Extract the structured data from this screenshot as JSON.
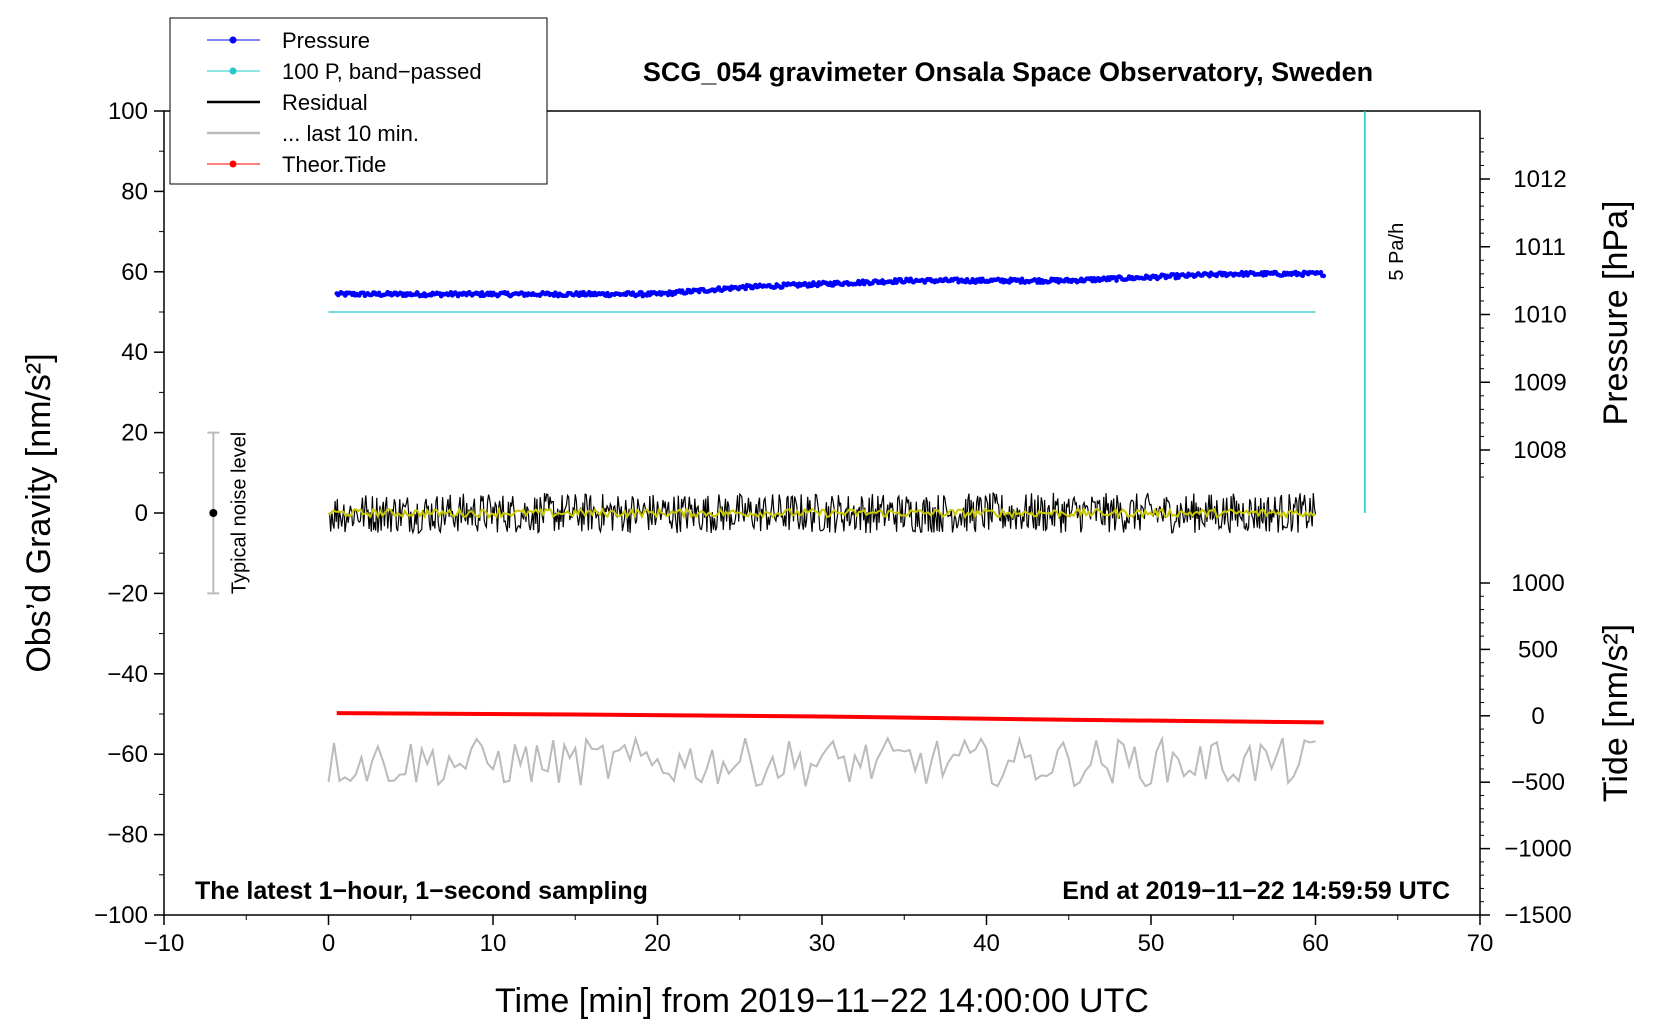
{
  "chart_data": {
    "type": "line",
    "title": "SCG_054 gravimeter Onsala Space Observatory, Sweden",
    "xlabel": "Time [min] from 2019−11−22 14:00:00 UTC",
    "ylabel": "Obs’d Gravity [nm/s²]",
    "y2label": "Pressure [hPa]",
    "y3label": "Tide [nm/s²]",
    "xlim": [
      -10,
      70
    ],
    "ylim": [
      -100,
      100
    ],
    "x_ticks": [
      "−10",
      "0",
      "10",
      "20",
      "30",
      "40",
      "50",
      "60",
      "70"
    ],
    "y_ticks": [
      "−100",
      "−80",
      "−60",
      "−40",
      "−20",
      "0",
      "20",
      "40",
      "60",
      "80",
      "100"
    ],
    "pressure_axis": {
      "ticks": [
        "1008",
        "1009",
        "1010",
        "1011",
        "1012"
      ],
      "range": [
        1007,
        1013
      ]
    },
    "tide_axis": {
      "ticks": [
        "−1500",
        "−1000",
        "−500",
        "0",
        "500",
        "1000"
      ],
      "range": [
        -1500,
        1000
      ]
    },
    "legend": [
      {
        "label": "Pressure",
        "color": "#0000ff",
        "marker": "dot"
      },
      {
        "label": "100 P, band−passed",
        "color": "#20c8c8",
        "marker": "dot"
      },
      {
        "label": "Residual",
        "color": "#000000",
        "marker": "line"
      },
      {
        "label": "... last 10 min.",
        "color": "#bbbbbb",
        "marker": "line"
      },
      {
        "label": "Theor.Tide",
        "color": "#ff0000",
        "marker": "dot"
      }
    ],
    "series": [
      {
        "name": "Pressure",
        "axis": "pressure",
        "color": "#0000ff",
        "x": [
          0.5,
          5,
          10,
          15,
          20,
          25,
          30,
          35,
          40,
          45,
          50,
          55,
          60.5
        ],
        "values": [
          1010.3,
          1010.3,
          1010.3,
          1010.3,
          1010.3,
          1010.4,
          1010.45,
          1010.5,
          1010.5,
          1010.5,
          1010.55,
          1010.6,
          1010.6
        ]
      },
      {
        "name": "100 P, band−passed",
        "axis": "gravity",
        "color": "#20c8c8",
        "x": [
          0,
          60
        ],
        "values": [
          50,
          50
        ]
      },
      {
        "name": "Residual",
        "axis": "gravity",
        "color": "#000000",
        "x": [
          0,
          60
        ],
        "values": [
          0,
          0
        ],
        "amplitude": 5
      },
      {
        "name": "Smoothed residual",
        "axis": "gravity",
        "color": "#c8c800",
        "x": [
          0,
          60
        ],
        "values": [
          0,
          0
        ],
        "amplitude": 1
      },
      {
        "name": "... last 10 min.",
        "axis": "gravity",
        "color": "#bbbbbb",
        "x": [
          0,
          60
        ],
        "values": [
          -62,
          -62
        ],
        "amplitude": 6
      },
      {
        "name": "Theor.Tide",
        "axis": "tide",
        "color": "#ff0000",
        "x": [
          0.5,
          15,
          30,
          45,
          60.5
        ],
        "values": [
          20,
          10,
          -5,
          -30,
          -50
        ]
      }
    ],
    "rate_marker": {
      "label": "5 Pa/h",
      "x": 63,
      "y_from": 0,
      "y_to": 100,
      "color": "#20c8c8"
    },
    "noise_bar": {
      "label": "Typical noise level",
      "x": -7,
      "center": 0,
      "low": -20,
      "high": 20
    },
    "note_left": "The latest 1−hour, 1−second sampling",
    "note_right": "End at 2019−11−22 14:59:59 UTC"
  }
}
